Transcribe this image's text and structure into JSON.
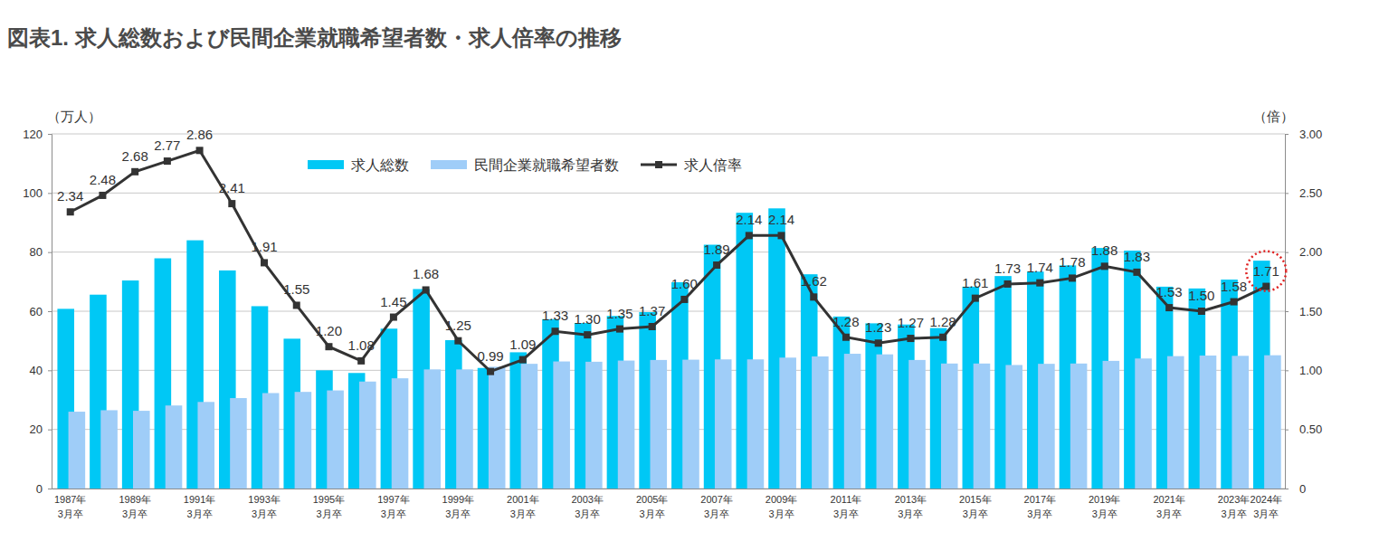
{
  "chart_data": {
    "type": "bar",
    "title": "図表1. 求人総数および民間企業就職希望者数・求人倍率の推移",
    "y_label": "（万人）",
    "y2_label": "（倍）",
    "categories": [
      "1987年3月卒",
      null,
      "1989年3月卒",
      null,
      "1991年3月卒",
      null,
      "1993年3月卒",
      null,
      "1995年3月卒",
      null,
      "1997年3月卒",
      null,
      "1999年3月卒",
      null,
      "2001年3月卒",
      null,
      "2003年3月卒",
      null,
      "2005年3月卒",
      null,
      "2007年3月卒",
      null,
      "2009年3月卒",
      null,
      "2011年3月卒",
      null,
      "2013年3月卒",
      null,
      "2015年3月卒",
      null,
      "2017年3月卒",
      null,
      "2019年3月卒",
      null,
      "2021年3月卒",
      null,
      "2023年3月卒",
      "2024年3月卒"
    ],
    "series": [
      {
        "name": "求人総数",
        "type": "bar",
        "color": "#00c8f5",
        "values": [
          60.8,
          65.6,
          70.4,
          77.9,
          84.0,
          73.8,
          61.7,
          50.7,
          40.0,
          39.1,
          54.1,
          67.5,
          50.2,
          40.8,
          46.1,
          57.3,
          56.0,
          58.4,
          59.7,
          69.8,
          82.5,
          93.3,
          94.8,
          72.5,
          58.2,
          55.9,
          55.5,
          54.3,
          68.3,
          71.9,
          73.4,
          75.5,
          81.4,
          80.5,
          68.3,
          67.7,
          70.7,
          77.1
        ]
      },
      {
        "name": "民間企業就職希望者数",
        "type": "bar",
        "color": "#9fcdf8",
        "values": [
          26.0,
          26.5,
          26.3,
          28.1,
          29.3,
          30.6,
          32.3,
          32.7,
          33.2,
          36.2,
          37.3,
          40.3,
          40.3,
          41.2,
          42.2,
          43.0,
          42.9,
          43.3,
          43.5,
          43.6,
          43.7,
          43.7,
          44.3,
          44.7,
          45.6,
          45.4,
          43.5,
          42.3,
          42.3,
          41.8,
          42.2,
          42.3,
          43.2,
          44.0,
          44.8,
          45.0,
          44.9,
          45.1
        ]
      },
      {
        "name": "求人倍率",
        "type": "line",
        "color": "#333333",
        "marker": "square",
        "axis": "y2",
        "data_labels": true,
        "values": [
          2.34,
          2.48,
          2.68,
          2.77,
          2.86,
          2.41,
          1.91,
          1.55,
          1.2,
          1.08,
          1.45,
          1.68,
          1.25,
          0.99,
          1.09,
          1.33,
          1.3,
          1.35,
          1.37,
          1.6,
          1.89,
          2.14,
          2.14,
          1.62,
          1.28,
          1.23,
          1.27,
          1.28,
          1.61,
          1.73,
          1.74,
          1.78,
          1.88,
          1.83,
          1.53,
          1.5,
          1.58,
          1.71
        ],
        "value_labels": [
          "2.34",
          "2.48",
          "2.68",
          "2.77",
          "2.86",
          "2.41",
          "1.91",
          "1.55",
          "1.20",
          "1.08",
          "1.45",
          "1.68",
          "1.25",
          "0.99",
          "1.09",
          "1.33",
          "1.30",
          "1.35",
          "1.37",
          "1.60",
          "1.89",
          "2.14",
          "2.14",
          "1.62",
          "1.28",
          "1.23",
          "1.27",
          "1.28",
          "1.61",
          "1.73",
          "1.74",
          "1.78",
          "1.88",
          "1.83",
          "1.53",
          "1.50",
          "1.58",
          "1.71"
        ]
      }
    ],
    "ylim": [
      0,
      120
    ],
    "yticks": [
      0,
      20,
      40,
      60,
      80,
      100,
      120
    ],
    "y2lim": [
      0,
      3
    ],
    "y2ticks": [
      0,
      {
        "value": 0.5,
        "label": "0.50"
      },
      {
        "value": 1,
        "label": "1.00"
      },
      {
        "value": 1.5,
        "label": "1.50"
      },
      {
        "value": 2,
        "label": "2.00"
      },
      {
        "value": 2.5,
        "label": "2.50"
      },
      {
        "value": 3,
        "label": "3.00"
      }
    ],
    "grid": true,
    "legend": "top"
  }
}
